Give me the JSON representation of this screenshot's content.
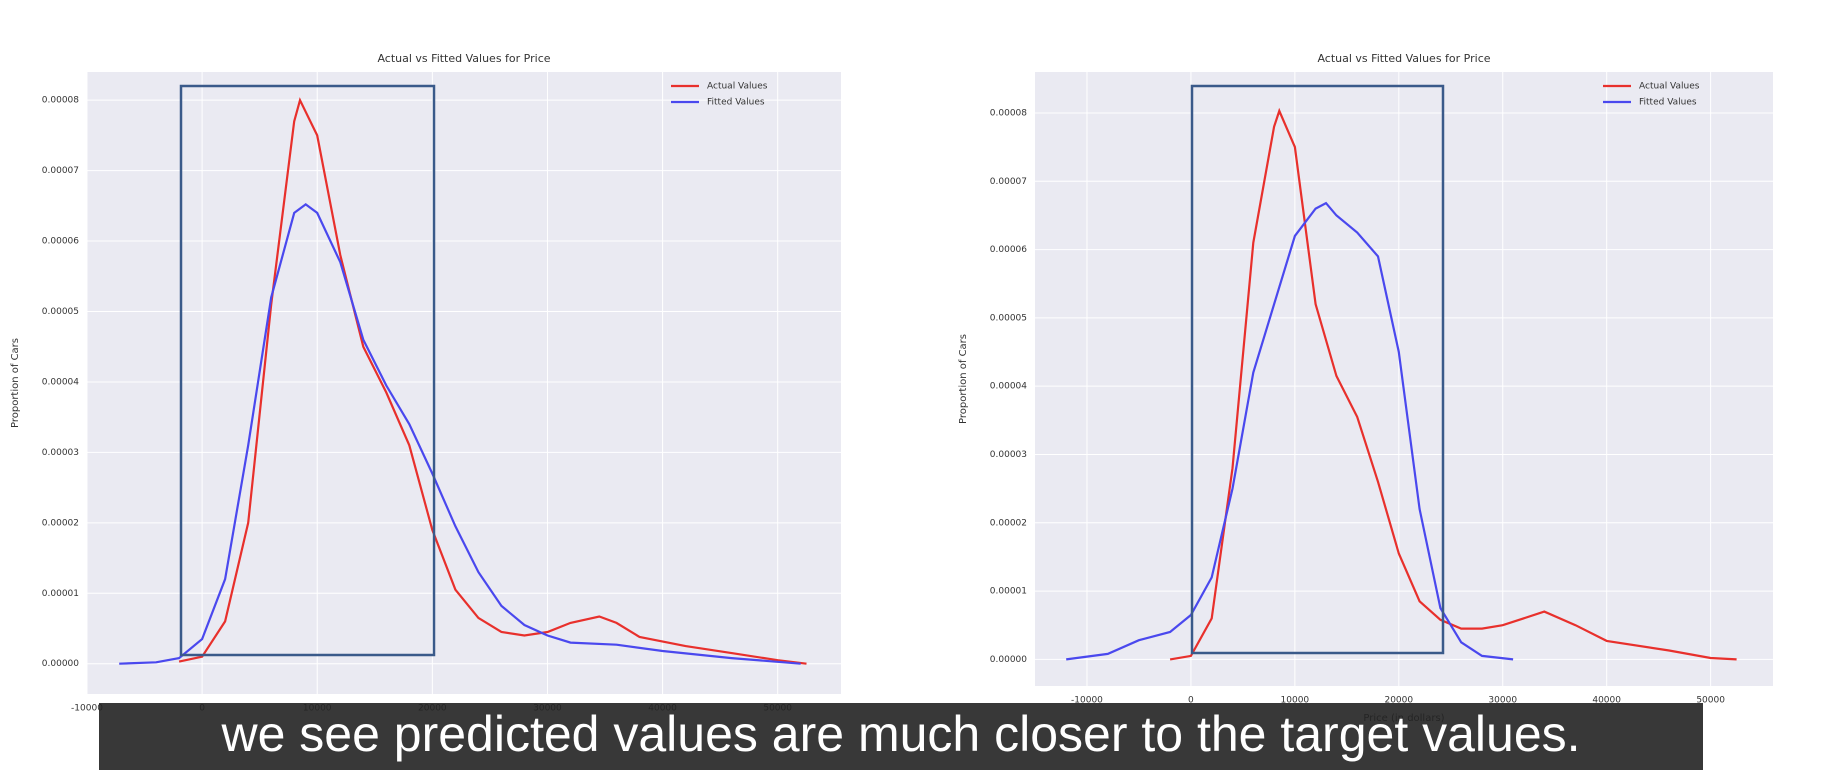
{
  "chart_data": [
    {
      "type": "line",
      "title": "Actual vs Fitted Values for Price",
      "ylabel": "Proportion of Cars",
      "xlim": [
        -10000,
        55500
      ],
      "ylim": [
        -4.3e-06,
        8.4e-05
      ],
      "xticks": [
        -10000,
        0,
        10000,
        20000,
        30000,
        40000,
        50000
      ],
      "yticks": [
        {
          "value": 0,
          "label": "0.00000"
        },
        {
          "value": 1e-05,
          "label": "0.00001"
        },
        {
          "value": 2e-05,
          "label": "0.00002"
        },
        {
          "value": 3e-05,
          "label": "0.00003"
        },
        {
          "value": 4e-05,
          "label": "0.00004"
        },
        {
          "value": 5e-05,
          "label": "0.00005"
        },
        {
          "value": 6e-05,
          "label": "0.00006"
        },
        {
          "value": 7e-05,
          "label": "0.00007"
        },
        {
          "value": 8e-05,
          "label": "0.00008"
        }
      ],
      "grid": true,
      "legend": "upper right",
      "series": [
        {
          "name": "Actual Values",
          "color": "#e8302c",
          "x": [
            -2000,
            0,
            2000,
            4000,
            6000,
            8000,
            8500,
            10000,
            12000,
            14000,
            16000,
            18000,
            20000,
            22000,
            24000,
            26000,
            28000,
            30000,
            32000,
            34500,
            36000,
            38000,
            42000,
            46000,
            50000,
            52500
          ],
          "values": [
            3e-07,
            1e-06,
            6e-06,
            2e-05,
            5.1e-05,
            7.7e-05,
            8e-05,
            7.5e-05,
            5.8e-05,
            4.5e-05,
            3.85e-05,
            3.1e-05,
            1.9e-05,
            1.05e-05,
            6.5e-06,
            4.5e-06,
            4e-06,
            4.5e-06,
            5.8e-06,
            6.7e-06,
            5.8e-06,
            3.8e-06,
            2.5e-06,
            1.5e-06,
            5e-07,
            0
          ]
        },
        {
          "name": "Fitted Values",
          "color": "#4a48ee",
          "x": [
            -7200,
            -4000,
            -2000,
            0,
            2000,
            4000,
            6000,
            8000,
            9000,
            10000,
            12000,
            14000,
            16000,
            18000,
            20000,
            22000,
            24000,
            26000,
            28000,
            30000,
            32000,
            36000,
            40000,
            46000,
            52000
          ],
          "values": [
            0,
            2e-07,
            8e-07,
            3.5e-06,
            1.2e-05,
            3.1e-05,
            5.2e-05,
            6.4e-05,
            6.52e-05,
            6.4e-05,
            5.7e-05,
            4.6e-05,
            3.95e-05,
            3.4e-05,
            2.7e-05,
            1.95e-05,
            1.3e-05,
            8.2e-06,
            5.5e-06,
            4e-06,
            3e-06,
            2.7e-06,
            1.8e-06,
            8e-07,
            0
          ]
        }
      ]
    },
    {
      "type": "line",
      "title": "Actual vs Fitted Values for Price",
      "ylabel": "Proportion of Cars",
      "xlabel": "Price (in dollars)",
      "xlim": [
        -15000,
        56000
      ],
      "ylim": [
        -3.9e-06,
        8.6e-05
      ],
      "xticks": [
        -10000,
        0,
        10000,
        20000,
        30000,
        40000,
        50000
      ],
      "yticks": [
        {
          "value": 0,
          "label": "0.00000"
        },
        {
          "value": 1e-05,
          "label": "0.00001"
        },
        {
          "value": 2e-05,
          "label": "0.00002"
        },
        {
          "value": 3e-05,
          "label": "0.00003"
        },
        {
          "value": 4e-05,
          "label": "0.00004"
        },
        {
          "value": 5e-05,
          "label": "0.00005"
        },
        {
          "value": 6e-05,
          "label": "0.00006"
        },
        {
          "value": 7e-05,
          "label": "0.00007"
        },
        {
          "value": 8e-05,
          "label": "0.00008"
        }
      ],
      "grid": true,
      "legend": "upper right",
      "series": [
        {
          "name": "Actual Values",
          "color": "#e8302c",
          "x": [
            -2000,
            0,
            2000,
            4000,
            6000,
            8000,
            8500,
            10000,
            12000,
            14000,
            16000,
            18000,
            20000,
            22000,
            24000,
            26000,
            28000,
            30000,
            34000,
            37000,
            40000,
            46000,
            50000,
            52500
          ],
          "values": [
            0,
            5e-07,
            6e-06,
            2.8e-05,
            6.1e-05,
            7.8e-05,
            8.03e-05,
            7.5e-05,
            5.2e-05,
            4.15e-05,
            3.55e-05,
            2.6e-05,
            1.55e-05,
            8.5e-06,
            5.8e-06,
            4.5e-06,
            4.5e-06,
            5e-06,
            7e-06,
            5e-06,
            2.7e-06,
            1.3e-06,
            2e-07,
            0
          ]
        },
        {
          "name": "Fitted Values",
          "color": "#4a48ee",
          "x": [
            -12000,
            -8000,
            -5000,
            -2000,
            0,
            2000,
            4000,
            6000,
            8000,
            10000,
            12000,
            13000,
            14000,
            16000,
            18000,
            20000,
            22000,
            24000,
            26000,
            28000,
            31000
          ],
          "values": [
            0,
            8e-07,
            2.8e-06,
            4e-06,
            6.5e-06,
            1.2e-05,
            2.5e-05,
            4.2e-05,
            5.2e-05,
            6.2e-05,
            6.6e-05,
            6.68e-05,
            6.5e-05,
            6.25e-05,
            5.9e-05,
            4.5e-05,
            2.2e-05,
            7.5e-06,
            2.5e-06,
            5e-07,
            0
          ]
        }
      ]
    }
  ],
  "caption": "we see predicted values are much closer to the target values."
}
